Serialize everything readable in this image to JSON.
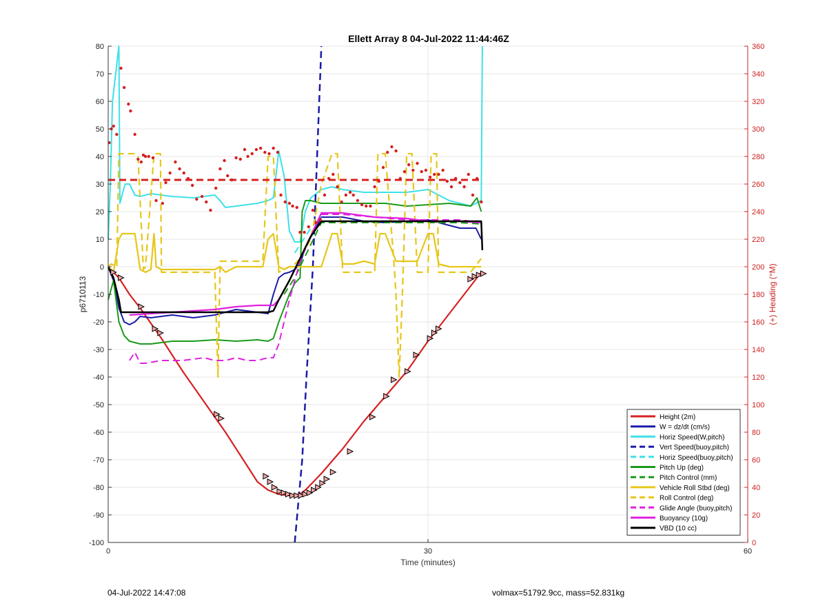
{
  "footer": {
    "left": "04-Jul-2022 14:47:08",
    "right": "volmax=51792.9cc, mass=52.831kg"
  },
  "chart_data": {
    "type": "line",
    "title": "Ellett Array 8 04-Jul-2022 11:44:46Z",
    "xlabel": "Time (minutes)",
    "ylabel": "p6710113",
    "y2label": "(+) Heading (°M)",
    "xlim": [
      0,
      60
    ],
    "ylim": [
      -100,
      80
    ],
    "y2lim": [
      0,
      360
    ],
    "xticks": [
      0,
      30,
      60
    ],
    "yticks": [
      -100,
      -90,
      -80,
      -70,
      -60,
      -50,
      -40,
      -30,
      -20,
      -10,
      0,
      10,
      20,
      30,
      40,
      50,
      60,
      70,
      80
    ],
    "y2ticks": [
      0,
      20,
      40,
      60,
      80,
      100,
      120,
      140,
      160,
      180,
      200,
      220,
      240,
      260,
      280,
      300,
      320,
      340,
      360
    ],
    "grid": true,
    "legend_position": "bottom-right",
    "colors": {
      "red": "#d62020",
      "blue": "#1a1aa8",
      "cyan": "#3ee0e8",
      "green": "#1a9a1a",
      "yellow": "#e6c619",
      "magenta": "#e020e0",
      "black": "#000000",
      "right_axis": "#cc2020"
    },
    "legend": [
      {
        "label": "Height (2m)",
        "color": "#d62020",
        "dash": false
      },
      {
        "label": "W = dz/dt (cm/s)",
        "color": "#1a1aa8",
        "dash": false
      },
      {
        "label": "Horiz Speed(W,pitch)",
        "color": "#3ee0e8",
        "dash": false
      },
      {
        "label": "Vert Speed(buoy,pitch)",
        "color": "#1a1aa8",
        "dash": true
      },
      {
        "label": "Horiz Speed(buoy,pitch)",
        "color": "#3ee0e8",
        "dash": true
      },
      {
        "label": "Pitch Up (deg)",
        "color": "#1a9a1a",
        "dash": false
      },
      {
        "label": "Pitch Control (mm)",
        "color": "#1a9a1a",
        "dash": true
      },
      {
        "label": "Vehicle Roll Stbd (deg)",
        "color": "#e6c619",
        "dash": false
      },
      {
        "label": "Roll Control (deg)",
        "color": "#e6c619",
        "dash": true
      },
      {
        "label": "Glide Angle (buoy,pitch)",
        "color": "#e020e0",
        "dash": true
      },
      {
        "label": "Buoyancy (10g)",
        "color": "#e020e0",
        "dash": false
      },
      {
        "label": "VBD (10 cc)",
        "color": "#000000",
        "dash": false
      }
    ],
    "series": [
      {
        "name": "Height (2m)",
        "axis": "left",
        "color": "#d62020",
        "dash": false,
        "width": 2.2,
        "x": [
          0,
          0.5,
          1,
          2,
          3,
          5,
          7,
          9,
          11,
          13,
          14,
          15,
          16,
          17,
          17.5,
          18,
          18.5,
          19,
          20,
          22,
          24,
          26,
          28,
          30,
          32,
          34,
          35
        ],
        "y": [
          0,
          -2,
          -4,
          -10,
          -15,
          -26,
          -38,
          -49,
          -60,
          -72,
          -78,
          -81,
          -82.5,
          -83,
          -83,
          -82.5,
          -81,
          -79,
          -75,
          -66,
          -56,
          -47,
          -38,
          -27,
          -17,
          -7,
          -2
        ]
      },
      {
        "name": "W = dz/dt (cm/s)",
        "axis": "left",
        "color": "#1a1aa8",
        "dash": false,
        "width": 2,
        "x": [
          0,
          0.5,
          1,
          1.5,
          2,
          2.5,
          3,
          4,
          6,
          8,
          10,
          12,
          14,
          15,
          15.5,
          16,
          16.5,
          17,
          17.5,
          18,
          18.5,
          20,
          22,
          24,
          26,
          28,
          30,
          32,
          33,
          34,
          34.5,
          35
        ],
        "y": [
          0,
          -5,
          -15,
          -20,
          -21,
          -20,
          -18,
          -18.5,
          -17.5,
          -18.5,
          -17.5,
          -15.5,
          -16.5,
          -17,
          -10,
          -4,
          -2.5,
          -2,
          -1,
          1,
          7,
          18,
          18,
          16.5,
          16,
          16.5,
          17,
          15,
          14,
          14,
          14,
          10
        ]
      },
      {
        "name": "Horiz Speed(W,pitch)",
        "axis": "left",
        "color": "#3ee0e8",
        "dash": false,
        "width": 2,
        "x": [
          0,
          0.2,
          0.4,
          0.7,
          1,
          1.1,
          1.3,
          1.6,
          2,
          2.5,
          3,
          4,
          6,
          8,
          10,
          10.5,
          11,
          12,
          14,
          15,
          15.5,
          16,
          16.5,
          17,
          17.5,
          18,
          18.5,
          19,
          20,
          21,
          22,
          24,
          26,
          28,
          30,
          32,
          33,
          34,
          35,
          35.1
        ],
        "y": [
          10,
          30,
          60,
          70,
          80,
          23,
          26,
          30,
          30,
          26,
          25.5,
          26.5,
          25.5,
          25,
          26,
          24,
          21.5,
          22,
          23,
          24,
          25,
          42,
          33,
          13,
          9,
          9,
          20,
          25,
          28,
          29,
          28,
          27,
          27,
          27,
          28,
          24,
          23,
          22,
          24,
          80
        ]
      },
      {
        "name": "Vert Speed(buoy,pitch)",
        "axis": "left",
        "color": "#1a1aa8",
        "dash": true,
        "width": 2.5,
        "x": [
          17.5,
          18.2,
          18.6,
          19.2,
          19.6,
          20
        ],
        "y": [
          -100,
          -70,
          -40,
          0,
          40,
          80
        ]
      },
      {
        "name": "Horiz Speed(buoy,pitch)",
        "axis": "left",
        "color": "#3ee0e8",
        "dash": true,
        "width": 2,
        "x": [
          17.5,
          18,
          18.5,
          19,
          20
        ],
        "y": [
          5,
          8,
          11,
          14,
          18
        ]
      },
      {
        "name": "Pitch Up (deg)",
        "axis": "left",
        "color": "#1a9a1a",
        "dash": false,
        "width": 2,
        "x": [
          0,
          0.5,
          1,
          1.5,
          2,
          3,
          4,
          5,
          6,
          8,
          10,
          12,
          14,
          15,
          15.5,
          16,
          17,
          17.5,
          18,
          18.2,
          18.5,
          19,
          20,
          22,
          24,
          26,
          28,
          30,
          32,
          34,
          34.6,
          35
        ],
        "y": [
          -12,
          -5,
          -20,
          -25,
          -27,
          -28,
          -28,
          -27.5,
          -27,
          -27,
          -26.5,
          -27,
          -26.5,
          -27,
          -26,
          -20,
          -10,
          -6,
          -4,
          20,
          24,
          24,
          23,
          23,
          23,
          23,
          22,
          22.5,
          23,
          22,
          25,
          20
        ]
      },
      {
        "name": "Pitch Control (mm)",
        "axis": "left",
        "color": "#1a9a1a",
        "dash": true,
        "width": 2,
        "x": [
          16.5,
          17,
          17.5,
          18,
          19,
          20,
          22,
          25,
          28,
          30,
          33,
          35
        ],
        "y": [
          -10,
          -7,
          -4,
          0,
          8,
          16,
          16,
          16,
          16,
          16,
          16,
          15.5
        ]
      },
      {
        "name": "Vehicle Roll Stbd (deg)",
        "axis": "left",
        "color": "#e6c619",
        "dash": false,
        "width": 2.2,
        "x": [
          0,
          0.5,
          1,
          1.3,
          1.6,
          2,
          2.5,
          3,
          3.5,
          4,
          4.3,
          4.5,
          5,
          6,
          8,
          10,
          10.5,
          11,
          12,
          14,
          14.5,
          15,
          15.5,
          16,
          16.5,
          17,
          18,
          19,
          20,
          21,
          21.5,
          22,
          23,
          24,
          25,
          25.5,
          26,
          27,
          27.5,
          28,
          29,
          30,
          30.5,
          31,
          32,
          34,
          35
        ],
        "y": [
          0,
          -2,
          10,
          12,
          12,
          12,
          12,
          -1,
          -2,
          -1,
          12,
          0,
          -1,
          -1,
          -1,
          -1,
          0,
          -2,
          0,
          0,
          0,
          10,
          12,
          0,
          -1,
          0,
          0,
          0,
          0,
          12,
          12,
          1,
          1,
          2,
          1,
          12,
          12,
          2,
          2,
          2,
          2,
          12,
          12,
          1,
          0,
          0,
          0
        ]
      },
      {
        "name": "Roll Control (deg)",
        "axis": "left",
        "color": "#e6c619",
        "dash": true,
        "width": 2.2,
        "x": [
          0,
          0.3,
          0.8,
          1,
          1.3,
          1.6,
          2.5,
          2.8,
          3.3,
          3.5,
          4.3,
          4.5,
          4.9,
          5,
          8,
          10,
          10.3,
          10.5,
          11,
          12,
          14,
          14.5,
          15,
          15.5,
          16,
          16.5,
          17,
          17.5,
          18,
          19,
          20,
          21,
          21.5,
          22,
          23,
          24,
          25,
          25.3,
          26,
          26.8,
          27,
          27.3,
          27.6,
          28,
          28.5,
          29,
          30,
          30.3,
          30.8,
          31,
          32,
          34,
          35
        ],
        "y": [
          0,
          1,
          0,
          41,
          41,
          41,
          41,
          40,
          -1,
          0,
          41,
          41,
          41,
          -2,
          -2,
          -2,
          -40,
          2,
          2,
          2,
          2,
          2,
          40,
          40,
          -2,
          -1,
          0,
          1,
          3,
          10,
          30,
          41,
          41,
          -2,
          -2,
          -2,
          -2,
          41,
          41,
          2,
          -10,
          -40,
          -10,
          41,
          41,
          -2,
          -2,
          41,
          41,
          -2,
          -2,
          -2,
          3
        ]
      },
      {
        "name": "Glide Angle (buoy,pitch)",
        "axis": "left",
        "color": "#e020e0",
        "dash": true,
        "width": 2,
        "x": [
          2,
          2.5,
          3,
          3.5,
          5,
          7,
          9,
          10,
          11,
          12,
          13,
          14,
          15,
          15.5,
          16,
          17,
          17.5,
          18,
          19,
          20,
          22,
          25,
          28,
          30,
          33,
          35
        ],
        "y": [
          -34,
          -31,
          -35,
          -35,
          -34,
          -34,
          -33,
          -34,
          -34,
          -33,
          -34,
          -34,
          -33,
          -33,
          -28,
          -12,
          -5,
          2,
          11,
          19,
          19,
          18,
          17,
          17,
          17,
          16
        ]
      },
      {
        "name": "Buoyancy (10g)",
        "axis": "left",
        "color": "#e020e0",
        "dash": false,
        "width": 2.2,
        "x": [
          2,
          4,
          6,
          8,
          10,
          12,
          14,
          15.5,
          16,
          17,
          18,
          19,
          20,
          22,
          25,
          28,
          30,
          33,
          35
        ],
        "y": [
          -17.5,
          -17,
          -16.5,
          -16,
          -15.5,
          -14.5,
          -14,
          -14,
          -12,
          -5,
          3,
          11,
          19.5,
          19.5,
          18,
          17.5,
          16.5,
          16.5,
          16
        ]
      },
      {
        "name": "VBD (10 cc)",
        "axis": "left",
        "color": "#000000",
        "dash": false,
        "width": 2.5,
        "x": [
          0,
          0.5,
          1,
          1.2,
          2,
          4,
          6,
          8,
          10,
          12,
          14,
          15,
          15.5,
          16,
          17,
          18,
          19,
          20,
          22,
          25,
          28,
          30,
          33,
          35,
          35.1
        ],
        "y": [
          0,
          -4,
          -12,
          -16.5,
          -16.5,
          -16.5,
          -16.5,
          -16.5,
          -16.5,
          -16.5,
          -16.5,
          -16.5,
          -16,
          -12,
          -5,
          3,
          11,
          16.5,
          16.5,
          16.5,
          16.5,
          16.5,
          16.5,
          16.5,
          6
        ]
      },
      {
        "name": "Heading",
        "axis": "right",
        "color": "#d62020",
        "dash": true,
        "width": 3,
        "x": [
          0,
          35
        ],
        "y": [
          263,
          263
        ]
      }
    ],
    "heading_points": {
      "x": [
        0.1,
        0.3,
        0.5,
        0.8,
        1.2,
        1.5,
        1.9,
        2.1,
        2.5,
        2.8,
        3.1,
        3.3,
        3.5,
        3.8,
        4.2,
        4.5,
        5.1,
        5.4,
        5.8,
        6.3,
        6.7,
        7.1,
        7.5,
        7.9,
        8.3,
        8.8,
        9.2,
        9.6,
        10.1,
        10.5,
        10.9,
        11.2,
        11.6,
        12.0,
        12.4,
        12.8,
        13.1,
        13.5,
        13.9,
        14.3,
        14.7,
        15.1,
        15.5,
        15.9,
        16.2,
        16.6,
        17.0,
        17.3,
        17.7,
        18.0,
        18.4,
        18.8,
        19.2,
        19.5,
        19.9,
        20.3,
        20.7,
        21.1,
        21.5,
        21.9,
        22.3,
        22.7,
        23.0,
        23.4,
        23.8,
        24.2,
        24.6,
        25.0,
        25.4,
        25.8,
        26.2,
        26.6,
        27.0,
        27.4,
        27.8,
        28.2,
        28.6,
        29.0,
        29.4,
        29.8,
        30.2,
        30.6,
        31.0,
        31.4,
        31.8,
        32.2,
        32.6,
        33.0,
        33.4,
        33.8,
        34.2,
        34.6,
        35.0
      ],
      "y": [
        290,
        300,
        302,
        296,
        344,
        330,
        318,
        313,
        296,
        278,
        276,
        281,
        280,
        280,
        279,
        248,
        246,
        261,
        268,
        276,
        271,
        268,
        264,
        259,
        249,
        251,
        247,
        241,
        257,
        271,
        277,
        266,
        263,
        279,
        278,
        285,
        280,
        282,
        285,
        286,
        283,
        282,
        286,
        283,
        252,
        247,
        246,
        244,
        243,
        225,
        225,
        229,
        241,
        232,
        234,
        252,
        264,
        267,
        258,
        247,
        252,
        254,
        252,
        248,
        245,
        244,
        244,
        258,
        262,
        272,
        283,
        287,
        284,
        264,
        269,
        274,
        270,
        275,
        269,
        270,
        265,
        267,
        267,
        270,
        262,
        258,
        264,
        261,
        258,
        267,
        252,
        264,
        247
      ]
    },
    "height_markers": {
      "x": [
        0.5,
        1.2,
        3.1,
        4.4,
        4.9,
        10.2,
        10.6,
        14.8,
        15.2,
        15.6,
        16.1,
        16.5,
        16.9,
        17.3,
        17.7,
        18.1,
        18.5,
        18.9,
        19.3,
        19.7,
        20.1,
        20.5,
        21.1,
        22.7,
        24.8,
        26.1,
        26.8,
        28.1,
        28.9,
        30.2,
        30.6,
        31.0,
        34.0,
        34.4,
        34.8,
        35.2
      ],
      "y": [
        -2,
        -4,
        -14.5,
        -22.5,
        -24,
        -53.5,
        -55,
        -76,
        -78,
        -80,
        -81.5,
        -82,
        -82.5,
        -83,
        -83,
        -83,
        -82.5,
        -82,
        -81,
        -80,
        -78.5,
        -77,
        -74.5,
        -67,
        -54.5,
        -47,
        -41,
        -38,
        -32,
        -26,
        -24,
        -22.5,
        -4.5,
        -3.5,
        -3,
        -2.5
      ]
    }
  }
}
